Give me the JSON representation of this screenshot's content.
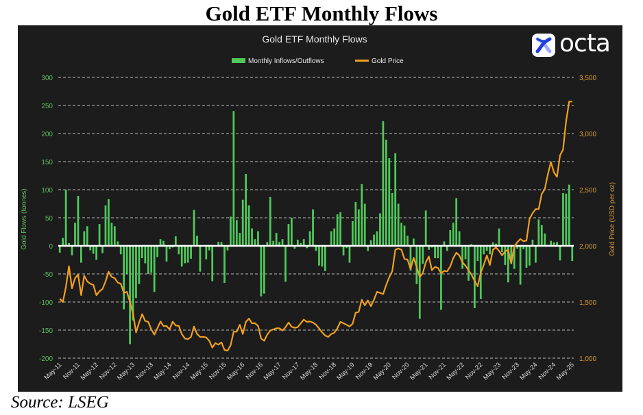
{
  "page": {
    "title": "Gold ETF Monthly Flows",
    "source": "Source: LSEG"
  },
  "logo": {
    "text": "octa",
    "icon": "octa-logo-icon"
  },
  "colors": {
    "bars": "#4fc95a",
    "line": "#f0a020",
    "left_axis": "#5fbf5f",
    "right_axis": "#d99a3a",
    "background": "#1c1c1c",
    "zero_line": "#ffffff"
  },
  "chart_data": {
    "type": "bar+line",
    "title": "Gold ETF Monthly Flows",
    "legend": [
      "Monthly Inflows/Outflows",
      "Gold Price"
    ],
    "legend_position": "top-center",
    "ylabel": "Gold Flows (tonnes)",
    "y2label": "Gold Price (USD per oz)",
    "ylim": [
      -200,
      300
    ],
    "y2lim": [
      1000,
      3500
    ],
    "yticks": [
      "300",
      "250",
      "200",
      "150",
      "100",
      "50",
      "0",
      "-50",
      "-100",
      "-150",
      "-200"
    ],
    "y2ticks": [
      "3,500",
      "3,000",
      "2,500",
      "2,000",
      "1,500",
      "1,000"
    ],
    "xtick_labels": [
      "May-11",
      "Nov-11",
      "May-12",
      "Nov-12",
      "May-13",
      "Nov-13",
      "May-14",
      "Nov-14",
      "May-15",
      "Nov-15",
      "May-16",
      "Nov-16",
      "May-17",
      "Nov-17",
      "May-18",
      "Nov-18",
      "May-19",
      "Nov-19",
      "May-20",
      "Nov-20",
      "May-21",
      "Nov-21",
      "May-22",
      "Nov-22",
      "May-23",
      "Nov-23",
      "May-24",
      "Nov-24",
      "May-25"
    ],
    "x_start": "May-11",
    "x_end": "May-25",
    "grid": true,
    "series": [
      {
        "name": "Monthly Inflows/Outflows",
        "type": "bar",
        "axis": "left",
        "values": [
          -12,
          14,
          100,
          5,
          -17,
          41,
          89,
          -30,
          26,
          35,
          -8,
          -14,
          -25,
          39,
          -13,
          72,
          83,
          41,
          35,
          8,
          -15,
          -113,
          -50,
          -175,
          -133,
          -93,
          -68,
          -22,
          -31,
          -50,
          -48,
          -82,
          -20,
          12,
          9,
          -28,
          -6,
          -3,
          17,
          -15,
          -37,
          -31,
          -30,
          -23,
          64,
          18,
          -46,
          0,
          -24,
          -8,
          -63,
          1,
          7,
          7,
          -66,
          -8,
          52,
          240,
          46,
          23,
          82,
          128,
          72,
          31,
          12,
          26,
          -90,
          -85,
          7,
          87,
          9,
          23,
          7,
          12,
          -64,
          39,
          50,
          -5,
          11,
          5,
          12,
          -4,
          26,
          65,
          -9,
          -35,
          -37,
          -45,
          1,
          26,
          31,
          56,
          60,
          -17,
          -4,
          -30,
          44,
          78,
          65,
          110,
          75,
          -9,
          10,
          20,
          26,
          58,
          222,
          189,
          156,
          94,
          165,
          75,
          41,
          36,
          18,
          -44,
          13,
          -68,
          -130,
          -32,
          63,
          -7,
          -3,
          -22,
          -22,
          -114,
          8,
          -9,
          28,
          41,
          85,
          26,
          -41,
          -24,
          -62,
          3,
          -111,
          -27,
          -95,
          -15,
          -9,
          -15,
          6,
          4,
          31,
          -11,
          -34,
          -65,
          -32,
          -41,
          -5,
          -69,
          -6,
          -39,
          -35,
          11,
          -30,
          47,
          37,
          22,
          2,
          9,
          6,
          7,
          -26,
          94,
          93,
          109,
          -27
        ]
      },
      {
        "name": "Gold Price",
        "type": "line",
        "axis": "right",
        "values": [
          1530,
          1500,
          1632,
          1819,
          1622,
          1713,
          1744,
          1561,
          1734,
          1683,
          1662,
          1652,
          1561,
          1595,
          1616,
          1683,
          1770,
          1723,
          1713,
          1673,
          1662,
          1581,
          1591,
          1500,
          1398,
          1230,
          1317,
          1392,
          1331,
          1323,
          1256,
          1210,
          1266,
          1327,
          1286,
          1286,
          1256,
          1325,
          1291,
          1287,
          1215,
          1175,
          1169,
          1189,
          1282,
          1215,
          1189,
          1189,
          1185,
          1155,
          1094,
          1134,
          1120,
          1140,
          1073,
          1067,
          1114,
          1236,
          1236,
          1297,
          1215,
          1323,
          1352,
          1311,
          1311,
          1287,
          1175,
          1155,
          1209,
          1246,
          1256,
          1266,
          1266,
          1246,
          1276,
          1317,
          1280,
          1270,
          1276,
          1311,
          1343,
          1323,
          1327,
          1317,
          1297,
          1266,
          1230,
          1201,
          1189,
          1215,
          1226,
          1266,
          1323,
          1311,
          1297,
          1282,
          1307,
          1404,
          1412,
          1520,
          1470,
          1514,
          1463,
          1520,
          1591,
          1581,
          1571,
          1650,
          1720,
          1774,
          1965,
          1976,
          1965,
          1884,
          1878,
          1793,
          1894,
          1813,
          1722,
          1756,
          1854,
          1905,
          1783,
          1813,
          1803,
          1756,
          1777,
          1773,
          1817,
          1891,
          1939,
          1915,
          1854,
          1823,
          1783,
          1742,
          1688,
          1640,
          1760,
          1830,
          1915,
          1830,
          1965,
          1986,
          1955,
          1915,
          1951,
          1965,
          1843,
          1996,
          2033,
          2061,
          2041,
          2047,
          2240,
          2290,
          2327,
          2327,
          2463,
          2504,
          2636,
          2746,
          2655,
          2614,
          2807,
          2858,
          3112,
          3285,
          3285
        ]
      }
    ]
  }
}
